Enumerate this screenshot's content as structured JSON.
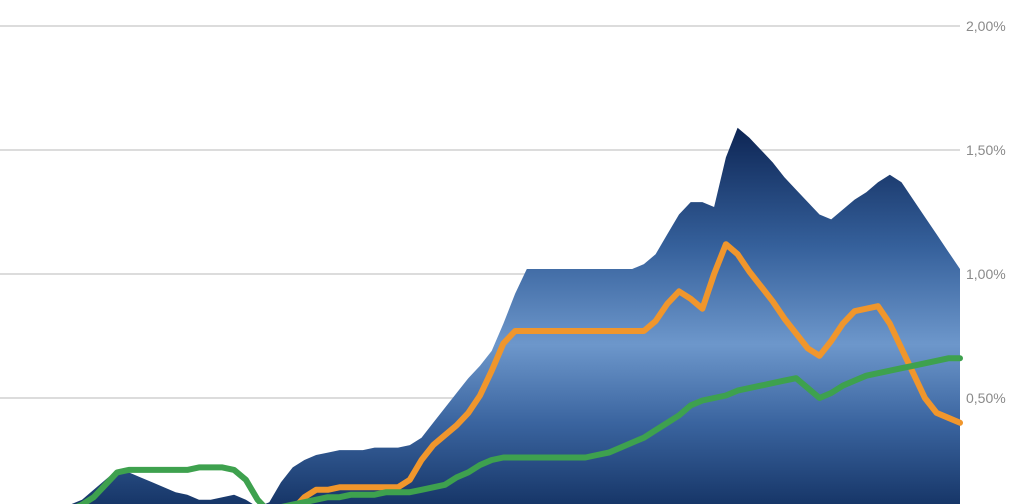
{
  "chart_data": {
    "type": "area",
    "title": "",
    "xlabel": "",
    "ylabel": "",
    "grid": true,
    "legend": "none",
    "y_axis": {
      "side": "right",
      "min": 0,
      "max": 2.0,
      "ticks": [
        {
          "value": 0.5,
          "label": "0,50%"
        },
        {
          "value": 1.0,
          "label": "1,00%"
        },
        {
          "value": 1.5,
          "label": "1,50%"
        },
        {
          "value": 2.0,
          "label": "2,00%"
        }
      ]
    },
    "x": [
      0,
      1,
      2,
      3,
      4,
      5,
      6,
      7,
      8,
      9,
      10,
      11,
      12,
      13,
      14,
      15,
      16,
      17,
      18,
      19,
      20,
      21,
      22,
      23,
      24,
      25,
      26,
      27,
      28,
      29,
      30,
      31,
      32,
      33,
      34,
      35,
      36,
      37,
      38,
      39,
      40,
      41,
      42,
      43,
      44,
      45,
      46,
      47,
      48,
      49,
      50,
      51,
      52,
      53,
      54,
      55,
      56,
      57,
      58,
      59,
      60,
      61,
      62,
      63,
      64,
      65,
      66,
      67,
      68,
      69,
      70,
      71,
      72,
      73,
      74,
      75,
      76,
      77,
      78,
      79,
      80,
      81,
      82
    ],
    "series": [
      {
        "color": "#1d3f77",
        "kind": "area",
        "values": [
          0.0,
          0.0,
          0.0,
          0.0,
          0.01,
          0.04,
          0.07,
          0.09,
          0.13,
          0.17,
          0.21,
          0.2,
          0.18,
          0.16,
          0.14,
          0.12,
          0.11,
          0.09,
          0.09,
          0.1,
          0.11,
          0.09,
          0.06,
          0.08,
          0.16,
          0.22,
          0.25,
          0.27,
          0.28,
          0.29,
          0.29,
          0.29,
          0.3,
          0.3,
          0.3,
          0.31,
          0.34,
          0.4,
          0.46,
          0.52,
          0.58,
          0.63,
          0.69,
          0.8,
          0.92,
          1.02,
          1.02,
          1.02,
          1.02,
          1.02,
          1.02,
          1.02,
          1.02,
          1.02,
          1.02,
          1.04,
          1.08,
          1.16,
          1.24,
          1.29,
          1.29,
          1.27,
          1.47,
          1.59,
          1.55,
          1.5,
          1.45,
          1.39,
          1.34,
          1.29,
          1.24,
          1.22,
          1.26,
          1.3,
          1.33,
          1.37,
          1.4,
          1.37,
          1.3,
          1.23,
          1.16,
          1.09,
          1.02
        ]
      },
      {
        "color": "#f0962c",
        "kind": "line",
        "values": [
          null,
          null,
          null,
          null,
          null,
          null,
          null,
          null,
          null,
          null,
          null,
          null,
          null,
          null,
          null,
          null,
          null,
          null,
          null,
          null,
          null,
          null,
          null,
          null,
          0.02,
          0.05,
          0.1,
          0.13,
          0.13,
          0.14,
          0.14,
          0.14,
          0.14,
          0.14,
          0.14,
          0.17,
          0.25,
          0.31,
          0.35,
          0.39,
          0.44,
          0.51,
          0.61,
          0.72,
          0.77,
          0.77,
          0.77,
          0.77,
          0.77,
          0.77,
          0.77,
          0.77,
          0.77,
          0.77,
          0.77,
          0.77,
          0.81,
          0.88,
          0.93,
          0.9,
          0.86,
          1.0,
          1.12,
          1.08,
          1.01,
          0.95,
          0.89,
          0.82,
          0.76,
          0.7,
          0.67,
          0.73,
          0.8,
          0.85,
          0.86,
          0.87,
          0.8,
          0.7,
          0.6,
          0.5,
          0.44,
          0.42,
          0.4
        ]
      },
      {
        "color": "#3ea14e",
        "kind": "line",
        "values": [
          0.0,
          0.0,
          0.0,
          0.0,
          0.01,
          0.03,
          0.05,
          0.07,
          0.1,
          0.15,
          0.2,
          0.21,
          0.21,
          0.21,
          0.21,
          0.21,
          0.21,
          0.22,
          0.22,
          0.22,
          0.21,
          0.17,
          0.09,
          0.04,
          0.06,
          0.07,
          0.08,
          0.09,
          0.1,
          0.1,
          0.11,
          0.11,
          0.11,
          0.12,
          0.12,
          0.12,
          0.13,
          0.14,
          0.15,
          0.18,
          0.2,
          0.23,
          0.25,
          0.26,
          0.26,
          0.26,
          0.26,
          0.26,
          0.26,
          0.26,
          0.26,
          0.27,
          0.28,
          0.3,
          0.32,
          0.34,
          0.37,
          0.4,
          0.43,
          0.47,
          0.49,
          0.5,
          0.51,
          0.53,
          0.54,
          0.55,
          0.56,
          0.57,
          0.58,
          0.54,
          0.5,
          0.52,
          0.55,
          0.57,
          0.59,
          0.6,
          0.61,
          0.62,
          0.63,
          0.64,
          0.65,
          0.66,
          0.66
        ]
      }
    ]
  }
}
